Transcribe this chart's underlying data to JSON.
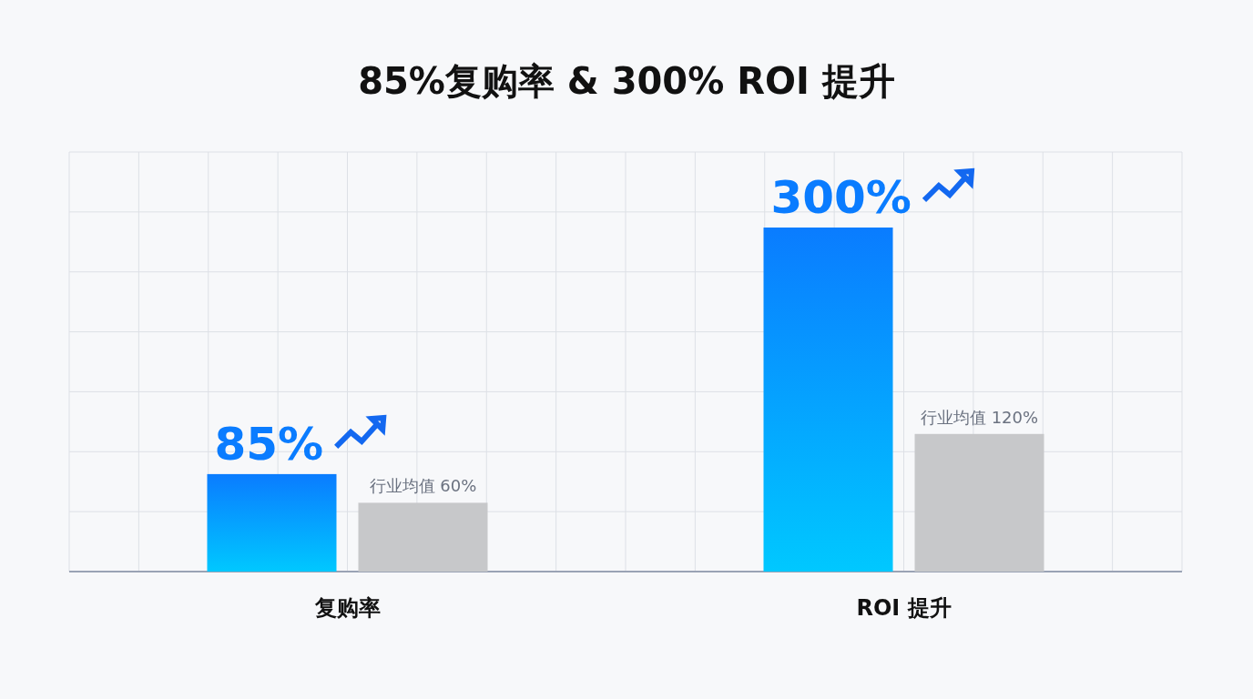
{
  "chart_data": {
    "type": "bar",
    "title": "85%复购率 & 300% ROI 提升",
    "categories": [
      "复购率",
      "ROI 提升"
    ],
    "grid": true,
    "tick_labels": "x",
    "series": [
      {
        "color": "#0a7cff",
        "values": [
          85,
          300
        ],
        "value_labels": [
          "85%",
          "300%"
        ]
      },
      {
        "color": "#c7c8ca",
        "values": [
          60,
          120
        ],
        "value_labels": [
          "行业均值 60%",
          "行业均值 120%"
        ]
      }
    ]
  }
}
